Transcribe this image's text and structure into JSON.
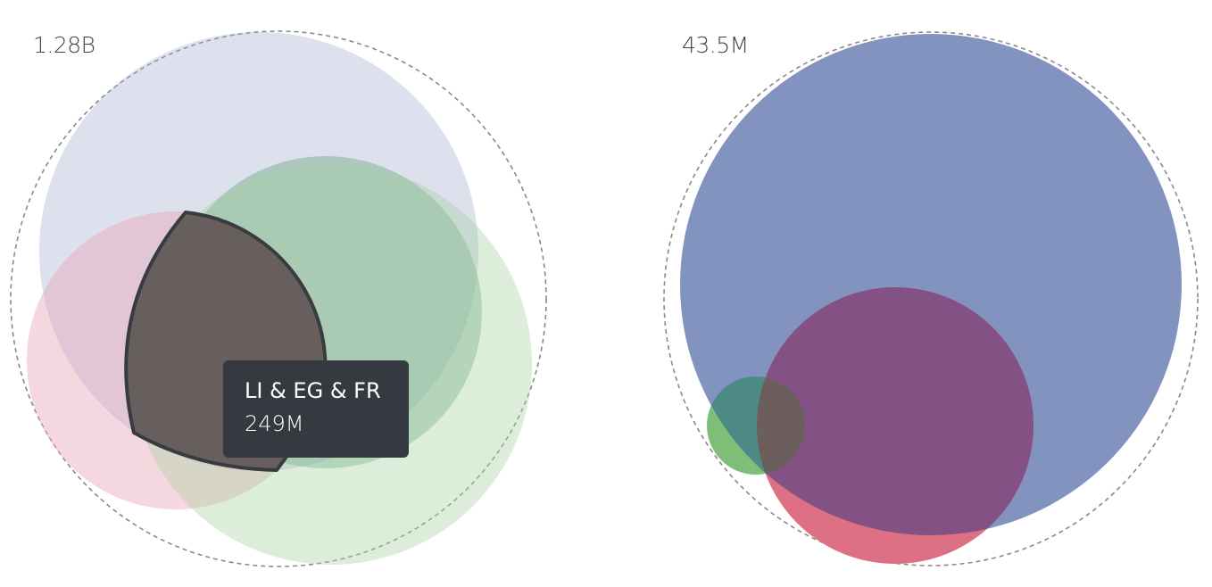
{
  "chart_data": [
    {
      "type": "venn",
      "total_label": "1.28B",
      "sets": [
        {
          "name": "",
          "color": "#9da6cc",
          "opacity": 0.35
        },
        {
          "name": "",
          "color": "#6ea98a",
          "opacity": 0.45
        },
        {
          "name": "",
          "color": "#e9a6b7",
          "opacity": 0.45
        },
        {
          "name": "",
          "color": "#a8d3a3",
          "opacity": 0.4
        }
      ],
      "highlighted_region": {
        "label": "LI & EG & FR",
        "value": "249M",
        "fill": "#665f5e",
        "stroke": "#383c41"
      }
    },
    {
      "type": "venn",
      "total_label": "43.5M",
      "sets": [
        {
          "name": "",
          "color": "#8393c0"
        },
        {
          "name": "",
          "color": "#de7084"
        },
        {
          "name": "",
          "color": "#7fbe78"
        }
      ],
      "overlap_colors": {
        "blue_red": "#845184",
        "blue_green": "#4d8a85",
        "blue_red_green": "#6b5e5c"
      }
    }
  ],
  "tooltip": {
    "title": "LI & EG & FR",
    "value": "249M"
  }
}
